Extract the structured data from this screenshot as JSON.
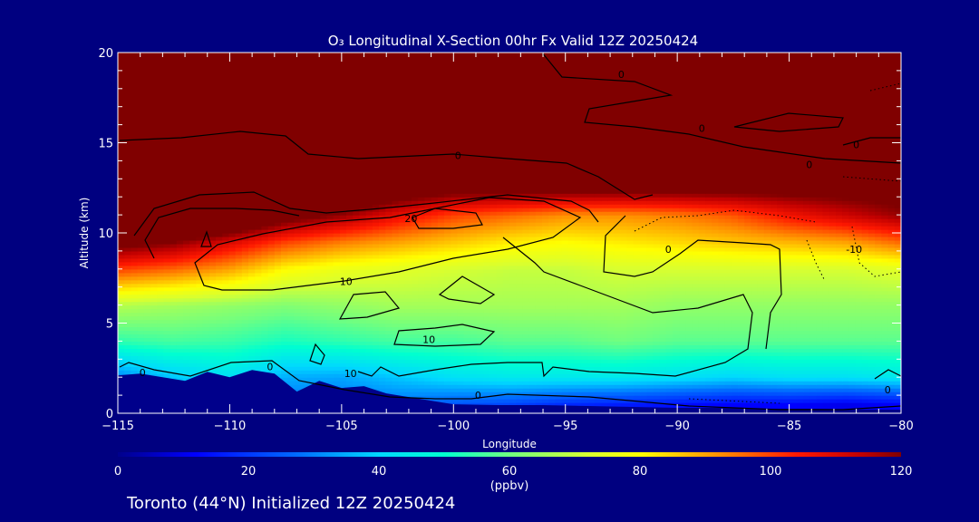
{
  "chart_data": {
    "type": "heatmap",
    "title": "O₃ Longitudinal X-Section 00hr  Fx Valid 12Z 20250424",
    "xlabel": "Longitude",
    "ylabel": "Altitude (km)",
    "xlim": [
      -115,
      -80
    ],
    "ylim": [
      0,
      20
    ],
    "x_ticks": [
      -115,
      -110,
      -105,
      -100,
      -95,
      -90,
      -85,
      -80
    ],
    "y_ticks": [
      0,
      5,
      10,
      15,
      20
    ],
    "colorbar": {
      "ticks": [
        0,
        20,
        40,
        60,
        80,
        100,
        120
      ],
      "range": [
        0,
        120
      ],
      "units": "(ppbv)",
      "colormap": "rainbow (blue → cyan → green → yellow → red → dark red)"
    },
    "color_levels": {
      "stops": [
        {
          "value": 0,
          "color": "#00008b"
        },
        {
          "value": 12,
          "color": "#0000ff"
        },
        {
          "value": 28,
          "color": "#0070ff"
        },
        {
          "value": 40,
          "color": "#00d8ff"
        },
        {
          "value": 50,
          "color": "#00ffd0"
        },
        {
          "value": 60,
          "color": "#70ff80"
        },
        {
          "value": 72,
          "color": "#d8ff30"
        },
        {
          "value": 80,
          "color": "#ffff00"
        },
        {
          "value": 92,
          "color": "#ff9000"
        },
        {
          "value": 104,
          "color": "#ff1800"
        },
        {
          "value": 114,
          "color": "#c00000"
        },
        {
          "value": 120,
          "color": "#800000"
        }
      ]
    },
    "ozone_field": {
      "longitudes": [
        -115,
        -112.5,
        -110,
        -107.5,
        -105,
        -102.5,
        -100,
        -97.5,
        -95,
        -92.5,
        -90,
        -87.5,
        -85,
        -82.5,
        -80
      ],
      "altitudes_km": [
        0.5,
        2,
        4,
        6,
        8,
        9.5,
        11,
        12.5,
        15,
        20
      ],
      "values_ppbv": [
        [
          null,
          30,
          null,
          null,
          null,
          28,
          24,
          22,
          18,
          16,
          14,
          12,
          12,
          10,
          12
        ],
        [
          30,
          38,
          42,
          35,
          34,
          38,
          42,
          44,
          44,
          44,
          42,
          40,
          42,
          42,
          44
        ],
        [
          54,
          56,
          55,
          52,
          54,
          56,
          56,
          58,
          58,
          60,
          58,
          58,
          58,
          58,
          58
        ],
        [
          68,
          66,
          64,
          62,
          64,
          66,
          66,
          66,
          66,
          66,
          64,
          64,
          64,
          64,
          64
        ],
        [
          100,
          96,
          90,
          80,
          76,
          74,
          72,
          70,
          70,
          72,
          72,
          72,
          72,
          72,
          74
        ],
        [
          125,
          120,
          110,
          100,
          94,
          90,
          86,
          82,
          80,
          82,
          84,
          86,
          88,
          90,
          96
        ],
        [
          150,
          150,
          140,
          126,
          118,
          108,
          100,
          96,
          92,
          92,
          94,
          98,
          106,
          112,
          118
        ],
        [
          170,
          170,
          170,
          150,
          140,
          130,
          125,
          125,
          125,
          125,
          125,
          125,
          125,
          125,
          125
        ],
        [
          200,
          200,
          200,
          190,
          180,
          175,
          170,
          165,
          160,
          160,
          160,
          160,
          160,
          160,
          160
        ],
        [
          300,
          300,
          300,
          300,
          300,
          300,
          300,
          300,
          300,
          300,
          300,
          300,
          300,
          300,
          300
        ]
      ]
    },
    "terrain": {
      "longitudes": [
        -115,
        -114,
        -113,
        -112,
        -111,
        -110,
        -109,
        -108,
        -107,
        -106,
        -105,
        -104,
        -103,
        -102,
        -101,
        -100,
        -98,
        -96,
        -94,
        -92,
        -90,
        -88,
        -86,
        -84,
        -82,
        -80
      ],
      "altitudes_km": [
        2.1,
        2.2,
        2.0,
        1.8,
        2.3,
        2.0,
        2.4,
        2.2,
        1.2,
        1.8,
        1.4,
        1.5,
        1.1,
        0.9,
        0.7,
        0.5,
        0.45,
        0.45,
        0.4,
        0.35,
        0.3,
        0.3,
        0.25,
        0.25,
        0.2,
        0.2
      ]
    },
    "contour_labels": [
      {
        "text": "0",
        "lon": -113.9,
        "alt": 2.25
      },
      {
        "text": "0",
        "lon": -108.2,
        "alt": 2.6
      },
      {
        "text": "10",
        "lon": -104.6,
        "alt": 2.2
      },
      {
        "text": "10",
        "lon": -101.1,
        "alt": 4.1
      },
      {
        "text": "10",
        "lon": -104.8,
        "alt": 7.3
      },
      {
        "text": "20",
        "lon": -101.9,
        "alt": 10.8
      },
      {
        "text": "0",
        "lon": -99.8,
        "alt": 14.3
      },
      {
        "text": "0",
        "lon": -92.5,
        "alt": 18.8
      },
      {
        "text": "0",
        "lon": -88.9,
        "alt": 15.8
      },
      {
        "text": "0",
        "lon": -84.1,
        "alt": 13.8
      },
      {
        "text": "0",
        "lon": -82.0,
        "alt": 14.9
      },
      {
        "text": "0",
        "lon": -90.4,
        "alt": 9.1
      },
      {
        "text": "0",
        "lon": -98.9,
        "alt": 1.0
      },
      {
        "text": "0",
        "lon": -80.6,
        "alt": 1.3
      },
      {
        "text": "-10",
        "lon": -82.1,
        "alt": 9.1
      }
    ]
  },
  "footer": "Toronto (44°N) Initialized 12Z 20250424"
}
